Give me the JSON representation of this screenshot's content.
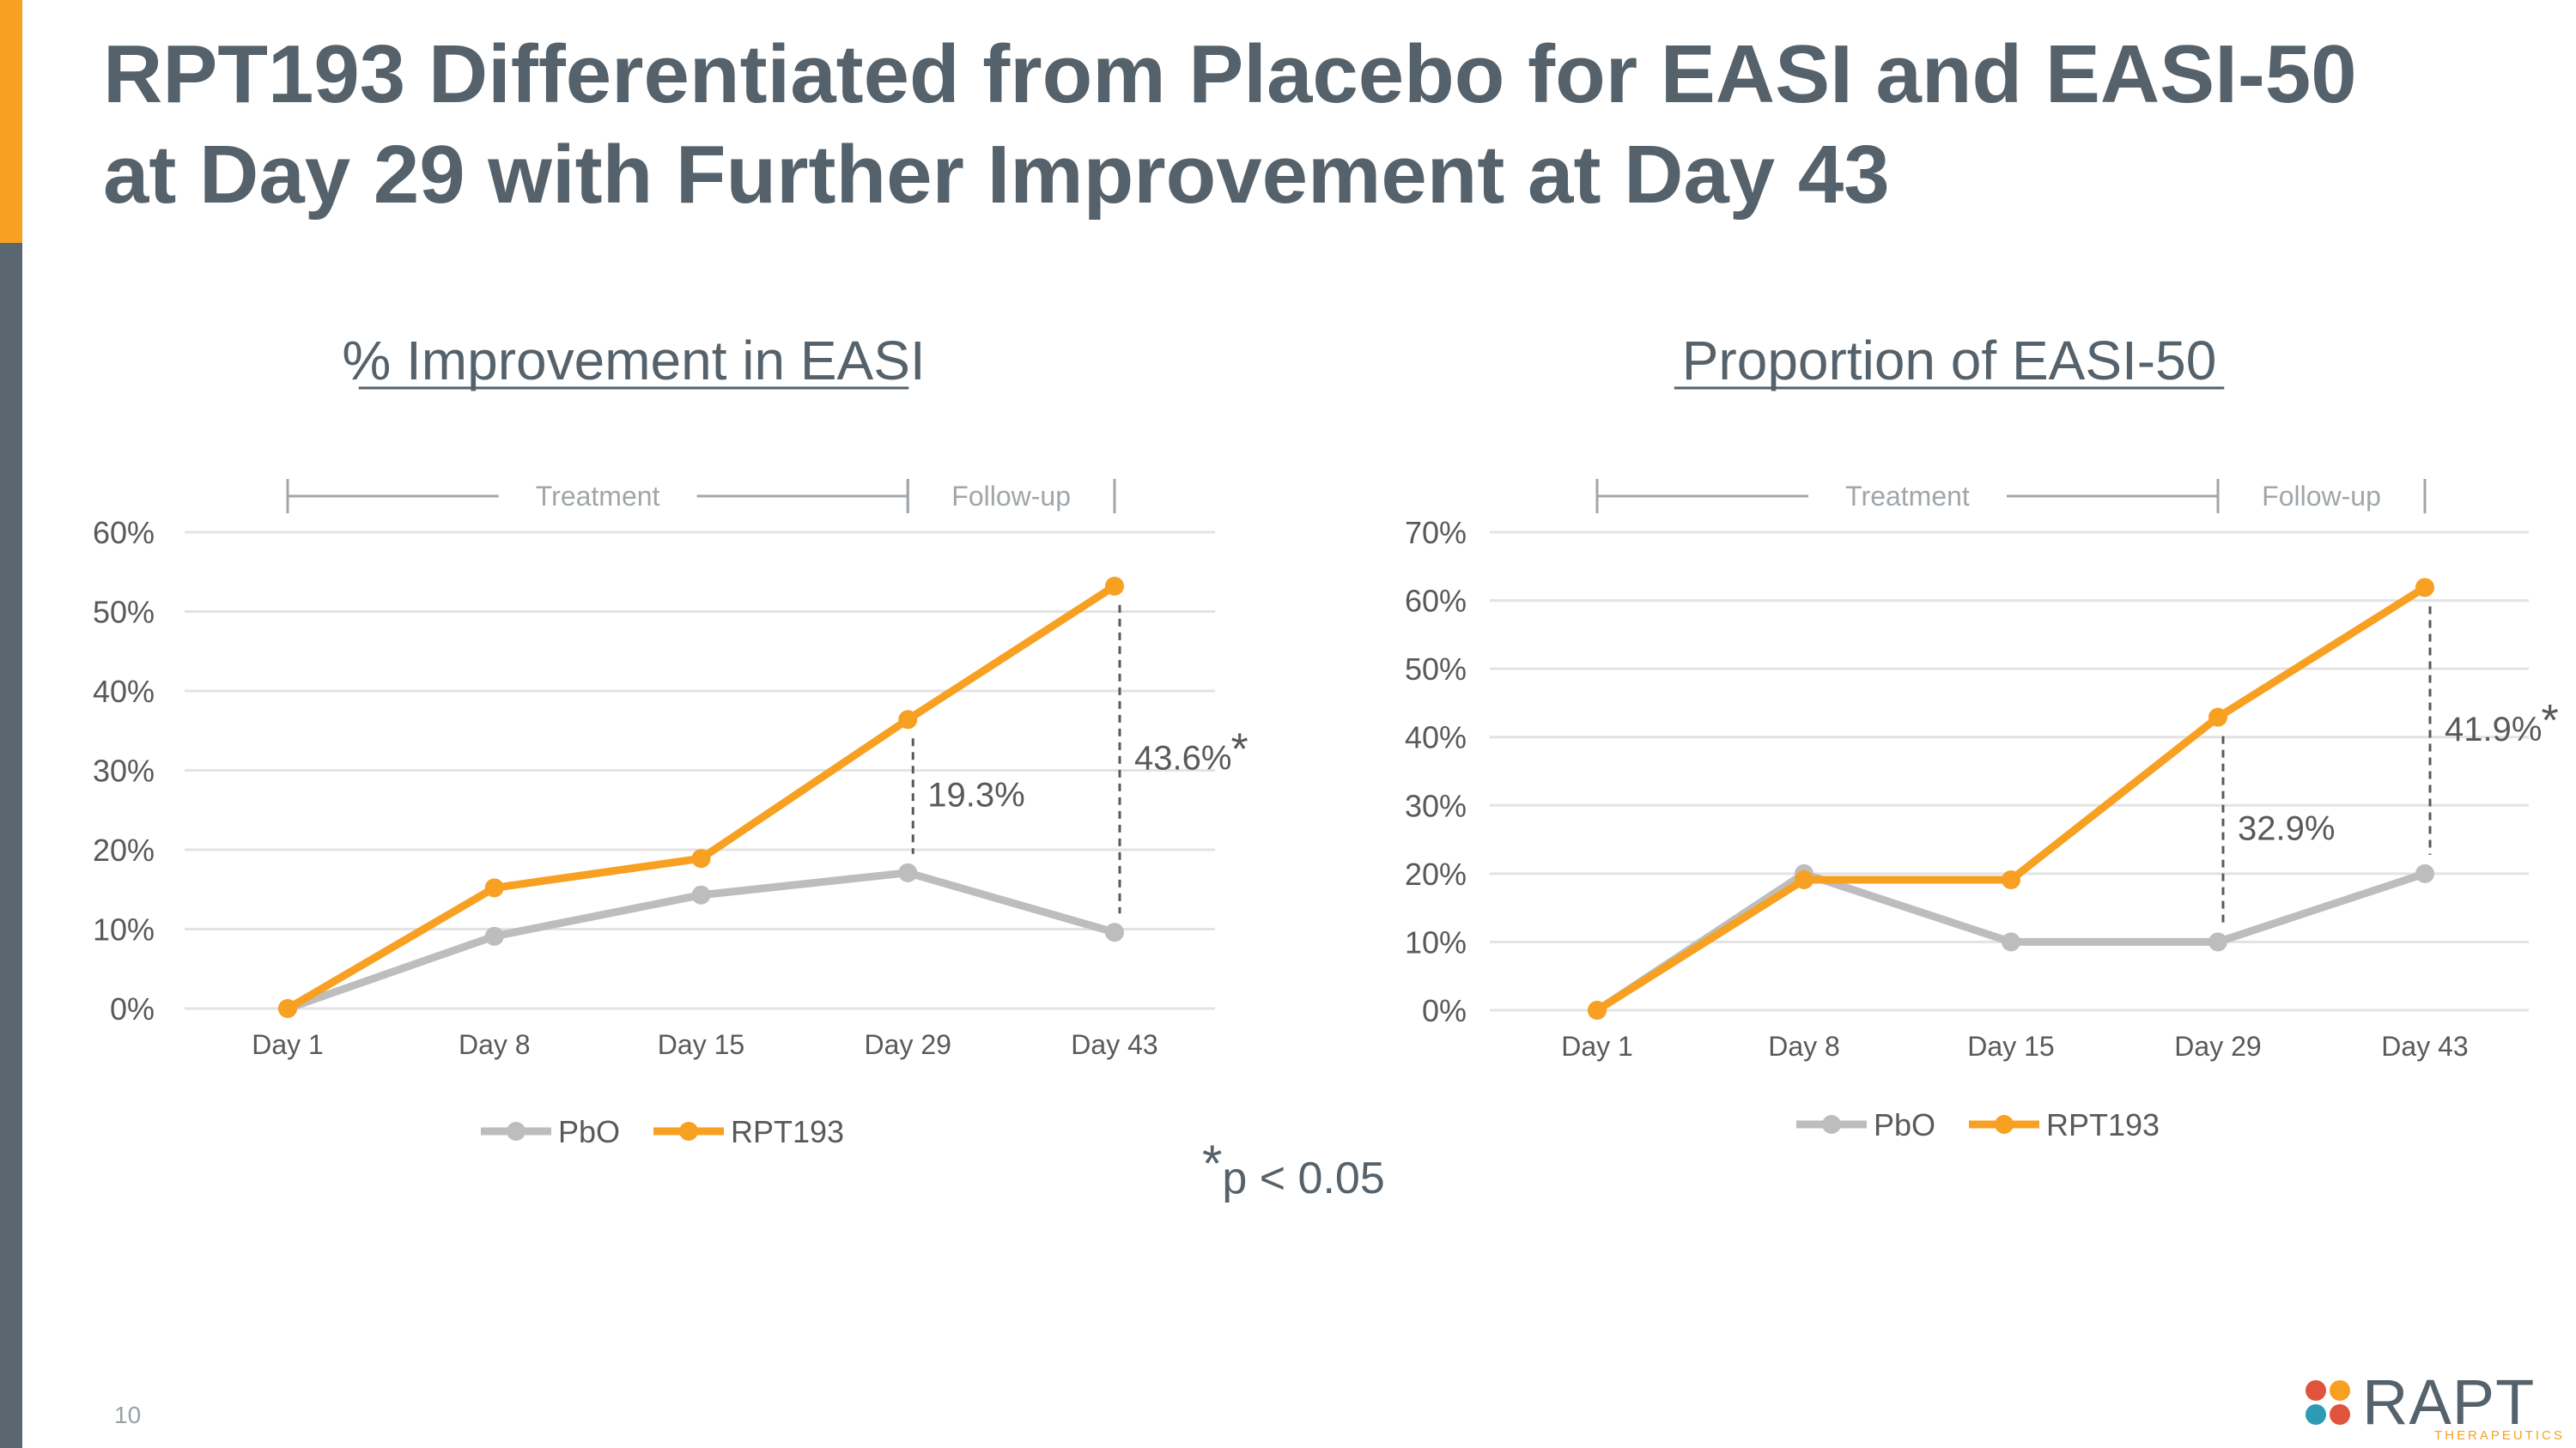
{
  "slide": {
    "title_line1": "RPT193 Differentiated from Placebo for EASI and EASI-50",
    "title_line2": "at Day 29 with Further Improvement at Day 43",
    "footnote_star": "*",
    "footnote_text": "p < 0.05",
    "page_number": "10"
  },
  "colors": {
    "accent_orange": "#F7A021",
    "slate": "#5A6770",
    "placebo_gray": "#BDBDBD",
    "text_gray": "#55626B"
  },
  "logo": {
    "name": "RAPT",
    "subtitle": "THERAPEUTICS",
    "dot_colors": [
      "#E0533D",
      "#F7A021",
      "#2E9BB5",
      "#E0533D"
    ]
  },
  "chart_data": [
    {
      "type": "line",
      "title": "% Improvement in EASI",
      "categories": [
        "Day 1",
        "Day 8",
        "Day 15",
        "Day 29",
        "Day 43"
      ],
      "y_ticks": [
        "0%",
        "10%",
        "20%",
        "30%",
        "40%",
        "50%",
        "60%"
      ],
      "ylim": [
        0,
        60
      ],
      "series": [
        {
          "name": "PbO",
          "color": "#BDBDBD",
          "values": [
            0,
            9.1,
            14.3,
            17.1,
            9.6
          ]
        },
        {
          "name": "RPT193",
          "color": "#F7A021",
          "values": [
            0,
            15.2,
            18.9,
            36.4,
            53.2
          ]
        }
      ],
      "phases": [
        {
          "label": "Treatment",
          "from": 0,
          "to": 3
        },
        {
          "label": "Follow-up",
          "from": 3,
          "to": 4
        }
      ],
      "annotations": [
        {
          "at": 3,
          "label": "19.3%",
          "significant": false,
          "star": ""
        },
        {
          "at": 4,
          "label": "43.6%",
          "significant": true,
          "star": "*"
        }
      ],
      "legend": "bottom"
    },
    {
      "type": "line",
      "title": "Proportion of EASI-50",
      "categories": [
        "Day 1",
        "Day 8",
        "Day 15",
        "Day 29",
        "Day 43"
      ],
      "y_ticks": [
        "0%",
        "10%",
        "20%",
        "30%",
        "40%",
        "50%",
        "60%",
        "70%"
      ],
      "ylim": [
        0,
        70
      ],
      "series": [
        {
          "name": "PbO",
          "color": "#BDBDBD",
          "values": [
            0,
            20,
            10,
            10,
            20
          ]
        },
        {
          "name": "RPT193",
          "color": "#F7A021",
          "values": [
            0,
            19.1,
            19.1,
            42.9,
            61.9
          ]
        }
      ],
      "phases": [
        {
          "label": "Treatment",
          "from": 0,
          "to": 3
        },
        {
          "label": "Follow-up",
          "from": 3,
          "to": 4
        }
      ],
      "annotations": [
        {
          "at": 3,
          "label": "32.9%",
          "significant": false,
          "star": ""
        },
        {
          "at": 4,
          "label": "41.9%",
          "significant": true,
          "star": "*"
        }
      ],
      "legend": "bottom"
    }
  ]
}
